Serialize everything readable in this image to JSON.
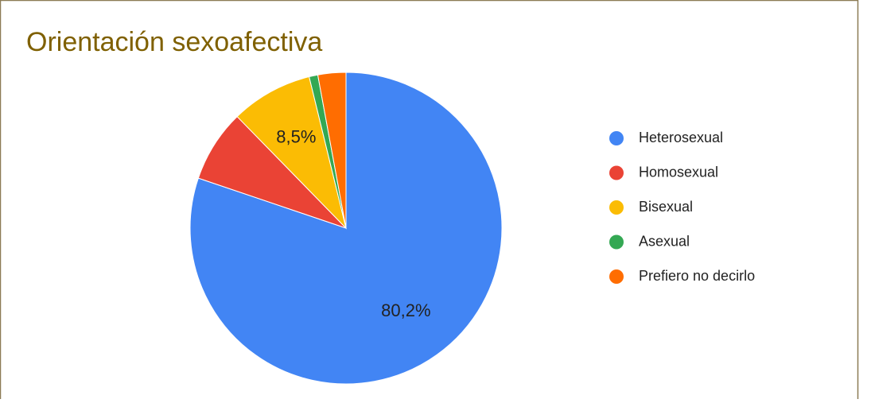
{
  "chart_data": {
    "type": "pie",
    "title": "Orientación sexoafectiva",
    "categories": [
      "Heterosexual",
      "Homosexual",
      "Bisexual",
      "Asexual",
      "Prefiero no decirlo"
    ],
    "values": [
      80.2,
      7.5,
      8.5,
      0.9,
      2.9
    ],
    "value_labels": [
      "80,2%",
      null,
      "8,5%",
      null,
      null
    ],
    "colors": [
      "#4285f4",
      "#ea4335",
      "#fbbc04",
      "#34a853",
      "#ff6d01"
    ],
    "legend": "right"
  }
}
